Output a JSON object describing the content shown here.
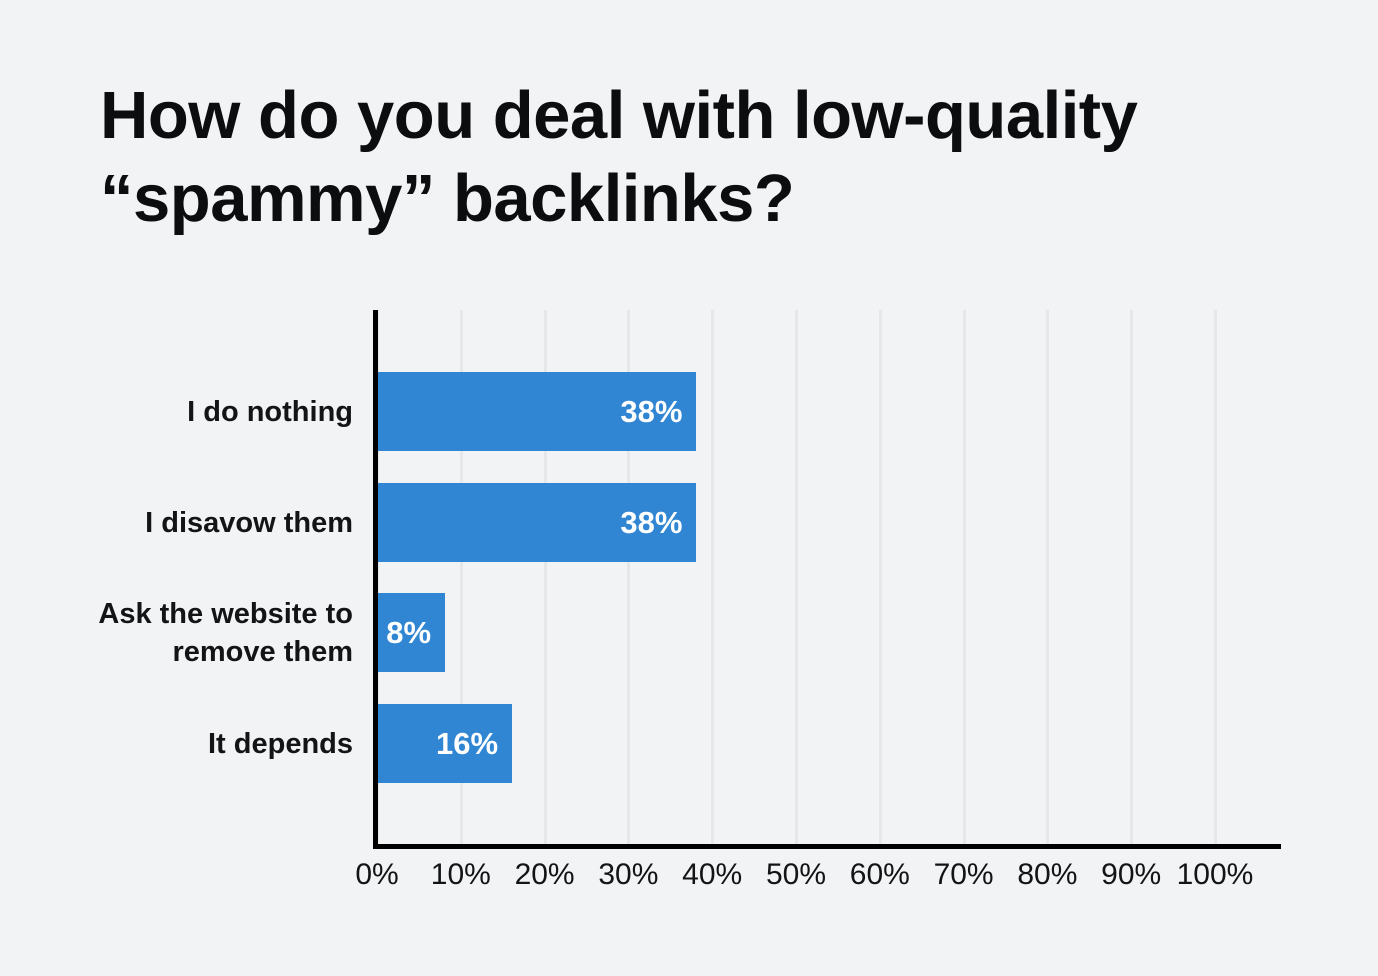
{
  "page": {
    "background_color": "#f2f3f5"
  },
  "title": {
    "line1": "How do you deal with low-quality",
    "line2": "“spammy” backlinks?"
  },
  "chart_data": {
    "type": "bar",
    "orientation": "horizontal",
    "title": "How do you deal with low-quality “spammy” backlinks?",
    "categories": [
      "I do nothing",
      "I disavow them",
      "Ask the website to remove them",
      "It depends"
    ],
    "values": [
      38,
      38,
      8,
      16
    ],
    "value_labels": [
      "38%",
      "38%",
      "8%",
      "16%"
    ],
    "x_ticks": [
      "0%",
      "10%",
      "20%",
      "30%",
      "40%",
      "50%",
      "60%",
      "70%",
      "80%",
      "90%",
      "100%"
    ],
    "xlim": [
      0,
      100
    ],
    "xlabel": "",
    "ylabel": "",
    "grid": "vertical-gridlines",
    "legend": "none",
    "bar_color": "#3186d3",
    "value_label_color": "#ffffff",
    "axis_color": "#000000",
    "gridline_color": "#e6e7e9",
    "text_color": "#131415"
  }
}
